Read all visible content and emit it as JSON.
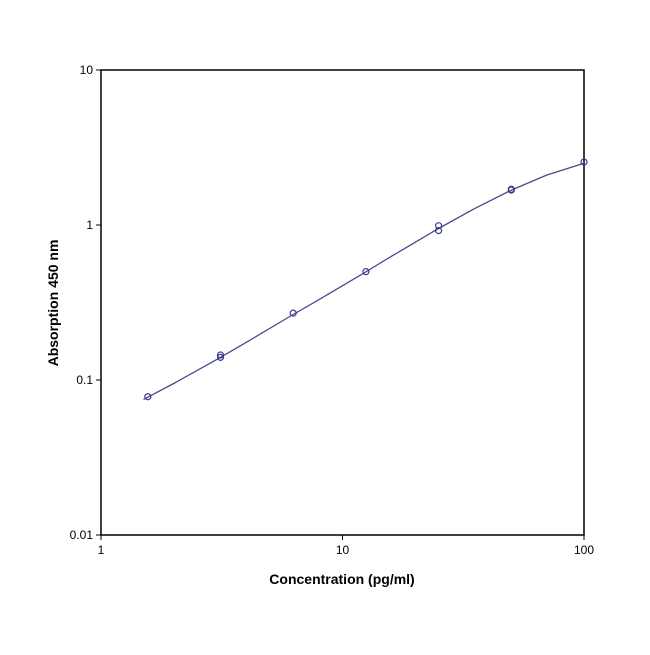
{
  "chart_data": {
    "type": "scatter",
    "x_label": "Concentration (pg/ml)",
    "y_label": "Absorption 450 nm",
    "x": [
      1.5625,
      3.125,
      3.125,
      6.25,
      12.5,
      25,
      25,
      50,
      50,
      100
    ],
    "values": [
      0.078,
      0.14,
      0.145,
      0.27,
      0.5,
      0.99,
      0.92,
      1.7,
      1.68,
      2.55
    ],
    "color": "#3a3a8c",
    "curve": {
      "x": [
        1.5,
        2,
        3,
        4,
        6,
        8,
        12,
        16,
        25,
        35,
        50,
        70,
        100
      ],
      "values": [
        0.075,
        0.095,
        0.135,
        0.175,
        0.255,
        0.33,
        0.48,
        0.63,
        0.95,
        1.27,
        1.68,
        2.1,
        2.5
      ],
      "color": "#4a4a8e"
    },
    "xscale": "log",
    "yscale": "log",
    "xlim": [
      1,
      100
    ],
    "ylim": [
      0.01,
      10
    ],
    "xticks": [
      1,
      10,
      100
    ],
    "yticks": [
      0.01,
      0.1,
      1,
      10
    ]
  }
}
